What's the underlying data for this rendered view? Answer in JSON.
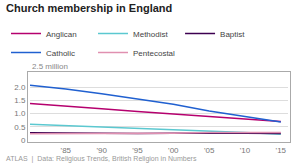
{
  "chart_data": {
    "type": "line",
    "title": "Church membership in England",
    "ylabel": "2.5 million",
    "annotations": [
      "ATLAS  |  Data: Religious Trends, British Religion in Numbers"
    ],
    "x": [
      1980,
      1985,
      1990,
      1995,
      2000,
      2005,
      2010,
      2015
    ],
    "series": [
      {
        "name": "Anglican",
        "color": "#b5006e",
        "values": [
          1.38,
          1.27,
          1.18,
          1.08,
          0.98,
          0.88,
          0.79,
          0.7
        ]
      },
      {
        "name": "Methodist",
        "color": "#5bc8d0",
        "values": [
          0.6,
          0.55,
          0.5,
          0.45,
          0.4,
          0.33,
          0.28,
          0.22
        ]
      },
      {
        "name": "Baptist",
        "color": "#3d0050",
        "values": [
          0.27,
          0.26,
          0.25,
          0.25,
          0.26,
          0.27,
          0.26,
          0.25
        ]
      },
      {
        "name": "Catholic",
        "color": "#2060d0",
        "values": [
          2.07,
          1.93,
          1.75,
          1.55,
          1.35,
          1.1,
          0.88,
          0.68
        ]
      },
      {
        "name": "Pentecostal",
        "color": "#e090b0",
        "values": [
          0.24,
          0.24,
          0.24,
          0.25,
          0.26,
          0.28,
          0.28,
          0.28
        ]
      }
    ],
    "xlim": [
      1980,
      2016
    ],
    "ylim": [
      0,
      2.5
    ],
    "xticks": [
      {
        "value": 1985,
        "label": "'85"
      },
      {
        "value": 1990,
        "label": "'90"
      },
      {
        "value": 1995,
        "label": "'95"
      },
      {
        "value": 2000,
        "label": "'00"
      },
      {
        "value": 2005,
        "label": "'05"
      },
      {
        "value": 2010,
        "label": "'10"
      },
      {
        "value": 2015,
        "label": "'15"
      }
    ],
    "yticks": [
      0,
      0.5,
      {
        "value": 1,
        "label": "1.0"
      },
      1.5,
      {
        "value": 2,
        "label": "2.0"
      }
    ],
    "grid": true,
    "legend": "top left"
  }
}
